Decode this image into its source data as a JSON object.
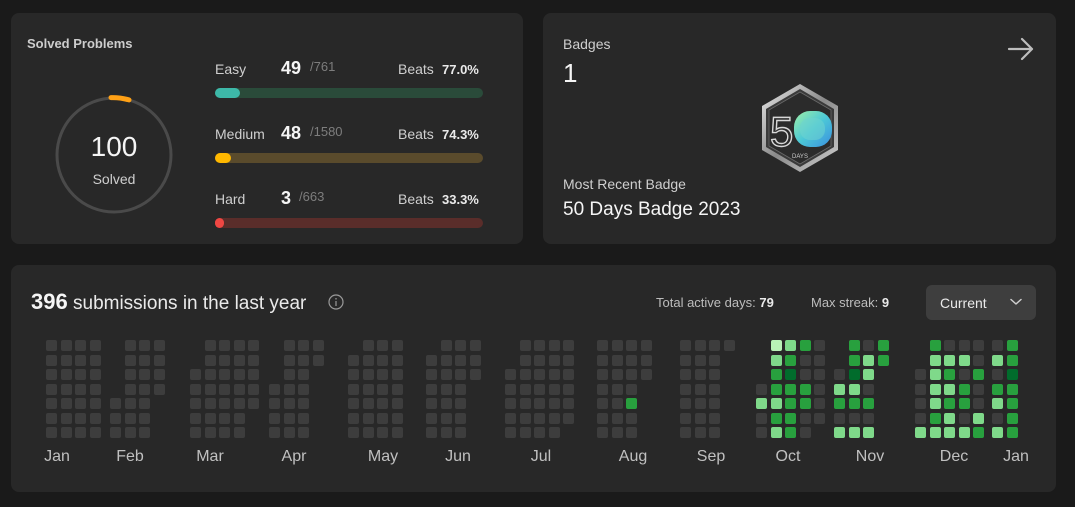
{
  "solved": {
    "title": "Solved Problems",
    "total_solved": "100",
    "total_label": "Solved",
    "difficulties": [
      {
        "name": "Easy",
        "solved": "49",
        "total": "/761",
        "beats_label": "Beats",
        "beats": "77.0%",
        "fraction": 0.064,
        "color": "#2cbb5d",
        "fill": "#3db8a8",
        "track": "#2a4b3a"
      },
      {
        "name": "Medium",
        "solved": "48",
        "total": "/1580",
        "beats_label": "Beats",
        "beats": "74.3%",
        "fraction": 0.03,
        "color": "#ffb800",
        "fill": "#ffb800",
        "track": "#5a4b2c"
      },
      {
        "name": "Hard",
        "solved": "3",
        "total": "/663",
        "beats_label": "Beats",
        "beats": "33.3%",
        "fraction": 0.005,
        "color": "#ef4743",
        "fill": "#ef4743",
        "track": "#5a2d2a"
      }
    ]
  },
  "badges": {
    "label": "Badges",
    "count": "1",
    "recent_label": "Most Recent Badge",
    "recent_name": "50 Days Badge 2023",
    "badge_text": "50",
    "badge_sub": "DAYS"
  },
  "submissions": {
    "count": "396",
    "text": "submissions in the last year",
    "active_label": "Total active days:",
    "active_value": "79",
    "streak_label": "Max streak:",
    "streak_value": "9",
    "dropdown": "Current",
    "months": [
      "Jan",
      "Feb",
      "Mar",
      "Apr",
      "May",
      "Jun",
      "Jul",
      "Aug",
      "Sep",
      "Oct",
      "Nov",
      "Dec",
      "Jan"
    ]
  }
}
